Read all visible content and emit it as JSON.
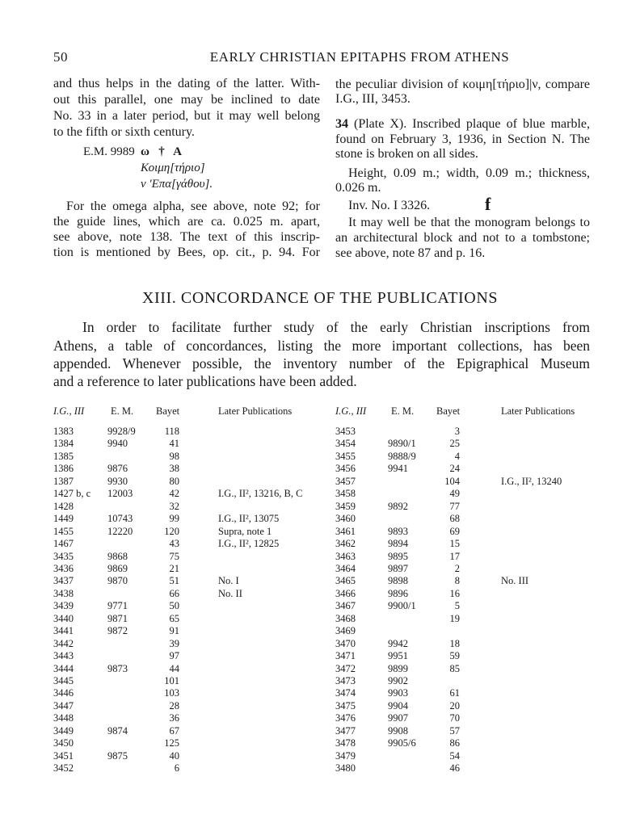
{
  "header": {
    "page_number": "50",
    "running_title": "EARLY CHRISTIAN EPITAPHS FROM ATHENS"
  },
  "left_column": {
    "para1": [
      "and thus helps in the dating of the latter. With-",
      "out this parallel, one may be inclined to date",
      "No. 33 in a later period, but it may well belong",
      "to the fifth or sixth century."
    ],
    "inscription": {
      "label": "E.M. 9989",
      "line1": "ω   †   Α",
      "line2": "Κοιμη[τήριο]",
      "line3": "ν 'Επα[γάθου]."
    },
    "para2": [
      "For the omega alpha, see above, note 92; for",
      "the guide lines, which are ca. 0.025 m. apart,",
      "see above, note 138. The text of this inscrip-",
      "tion is mentioned by Bees, op. cit., p. 94. For"
    ]
  },
  "right_column": {
    "para1": [
      "the peculiar division of κοιμη[τήριο]|ν, compare",
      "I.G., III, 3453."
    ],
    "entry_number": "34",
    "entry": [
      "(Plate X). Inscribed plaque of blue marble,",
      "found on February 3, 1936, in Section N. The",
      "stone is broken on all sides."
    ],
    "dimensions": [
      "Height, 0.09 m.; width, 0.09 m.; thickness,",
      "0.026 m."
    ],
    "inventory": "Inv. No. I 3326.",
    "monogram": "⳩",
    "para2": [
      "It may well be that the monogram belongs to",
      "an architectural block and not to a tombstone;",
      "see above, note 87 and p. 16."
    ]
  },
  "section": {
    "title": "XIII. CONCORDANCE OF THE PUBLICATIONS",
    "intro": [
      "In order to facilitate further study of the early Christian inscriptions from",
      "Athens, a table of concordances, listing the more important collections, has been",
      "appended. Whenever possible, the inventory number of the Epigraphical Museum",
      "and a reference to later publications have been added."
    ]
  },
  "table": {
    "columns": [
      "I.G., III",
      "E. M.",
      "Bayet",
      "Later Publications"
    ],
    "left_rows": [
      [
        "1383",
        "9928/9",
        "118",
        ""
      ],
      [
        "1384",
        "9940",
        "41",
        ""
      ],
      [
        "1385",
        "",
        "98",
        ""
      ],
      [
        "1386",
        "9876",
        "38",
        ""
      ],
      [
        "1387",
        "9930",
        "80",
        ""
      ],
      [
        "1427 b, c",
        "12003",
        "42",
        "I.G., II², 13216, B, C"
      ],
      [
        "1428",
        "",
        "32",
        ""
      ],
      [
        "1449",
        "10743",
        "99",
        "I.G., II², 13075"
      ],
      [
        "1455",
        "12220",
        "120",
        "Supra, note 1"
      ],
      [
        "1467",
        "",
        "43",
        "I.G., II², 12825"
      ],
      [
        "3435",
        "9868",
        "75",
        ""
      ],
      [
        "3436",
        "9869",
        "21",
        ""
      ],
      [
        "3437",
        "9870",
        "51",
        "No. I"
      ],
      [
        "3438",
        "",
        "66",
        "No. II"
      ],
      [
        "3439",
        "9771",
        "50",
        ""
      ],
      [
        "3440",
        "9871",
        "65",
        ""
      ],
      [
        "3441",
        "9872",
        "91",
        ""
      ],
      [
        "3442",
        "",
        "39",
        ""
      ],
      [
        "3443",
        "",
        "97",
        ""
      ],
      [
        "3444",
        "9873",
        "44",
        ""
      ],
      [
        "3445",
        "",
        "101",
        ""
      ],
      [
        "3446",
        "",
        "103",
        ""
      ],
      [
        "3447",
        "",
        "28",
        ""
      ],
      [
        "3448",
        "",
        "36",
        ""
      ],
      [
        "3449",
        "9874",
        "67",
        ""
      ],
      [
        "3450",
        "",
        "125",
        ""
      ],
      [
        "3451",
        "9875",
        "40",
        ""
      ],
      [
        "3452",
        "",
        "6",
        ""
      ]
    ],
    "right_rows": [
      [
        "3453",
        "",
        "3",
        ""
      ],
      [
        "3454",
        "9890/1",
        "25",
        ""
      ],
      [
        "3455",
        "9888/9",
        "4",
        ""
      ],
      [
        "3456",
        "9941",
        "24",
        ""
      ],
      [
        "3457",
        "",
        "104",
        "I.G., II², 13240"
      ],
      [
        "3458",
        "",
        "49",
        ""
      ],
      [
        "3459",
        "9892",
        "77",
        ""
      ],
      [
        "3460",
        "",
        "68",
        ""
      ],
      [
        "3461",
        "9893",
        "69",
        ""
      ],
      [
        "3462",
        "9894",
        "15",
        ""
      ],
      [
        "3463",
        "9895",
        "17",
        ""
      ],
      [
        "3464",
        "9897",
        "2",
        ""
      ],
      [
        "3465",
        "9898",
        "8",
        "No. III"
      ],
      [
        "3466",
        "9896",
        "16",
        ""
      ],
      [
        "3467",
        "9900/1",
        "5",
        ""
      ],
      [
        "3468",
        "",
        "19",
        ""
      ],
      [
        "3469",
        "",
        "",
        ""
      ],
      [
        "3470",
        "9942",
        "18",
        ""
      ],
      [
        "3471",
        "9951",
        "59",
        ""
      ],
      [
        "3472",
        "9899",
        "85",
        ""
      ],
      [
        "3473",
        "9902",
        "",
        ""
      ],
      [
        "3474",
        "9903",
        "61",
        ""
      ],
      [
        "3475",
        "9904",
        "20",
        ""
      ],
      [
        "3476",
        "9907",
        "70",
        ""
      ],
      [
        "3477",
        "9908",
        "57",
        ""
      ],
      [
        "3478",
        "9905/6",
        "86",
        ""
      ],
      [
        "3479",
        "",
        "54",
        ""
      ],
      [
        "3480",
        "",
        "46",
        ""
      ]
    ]
  }
}
